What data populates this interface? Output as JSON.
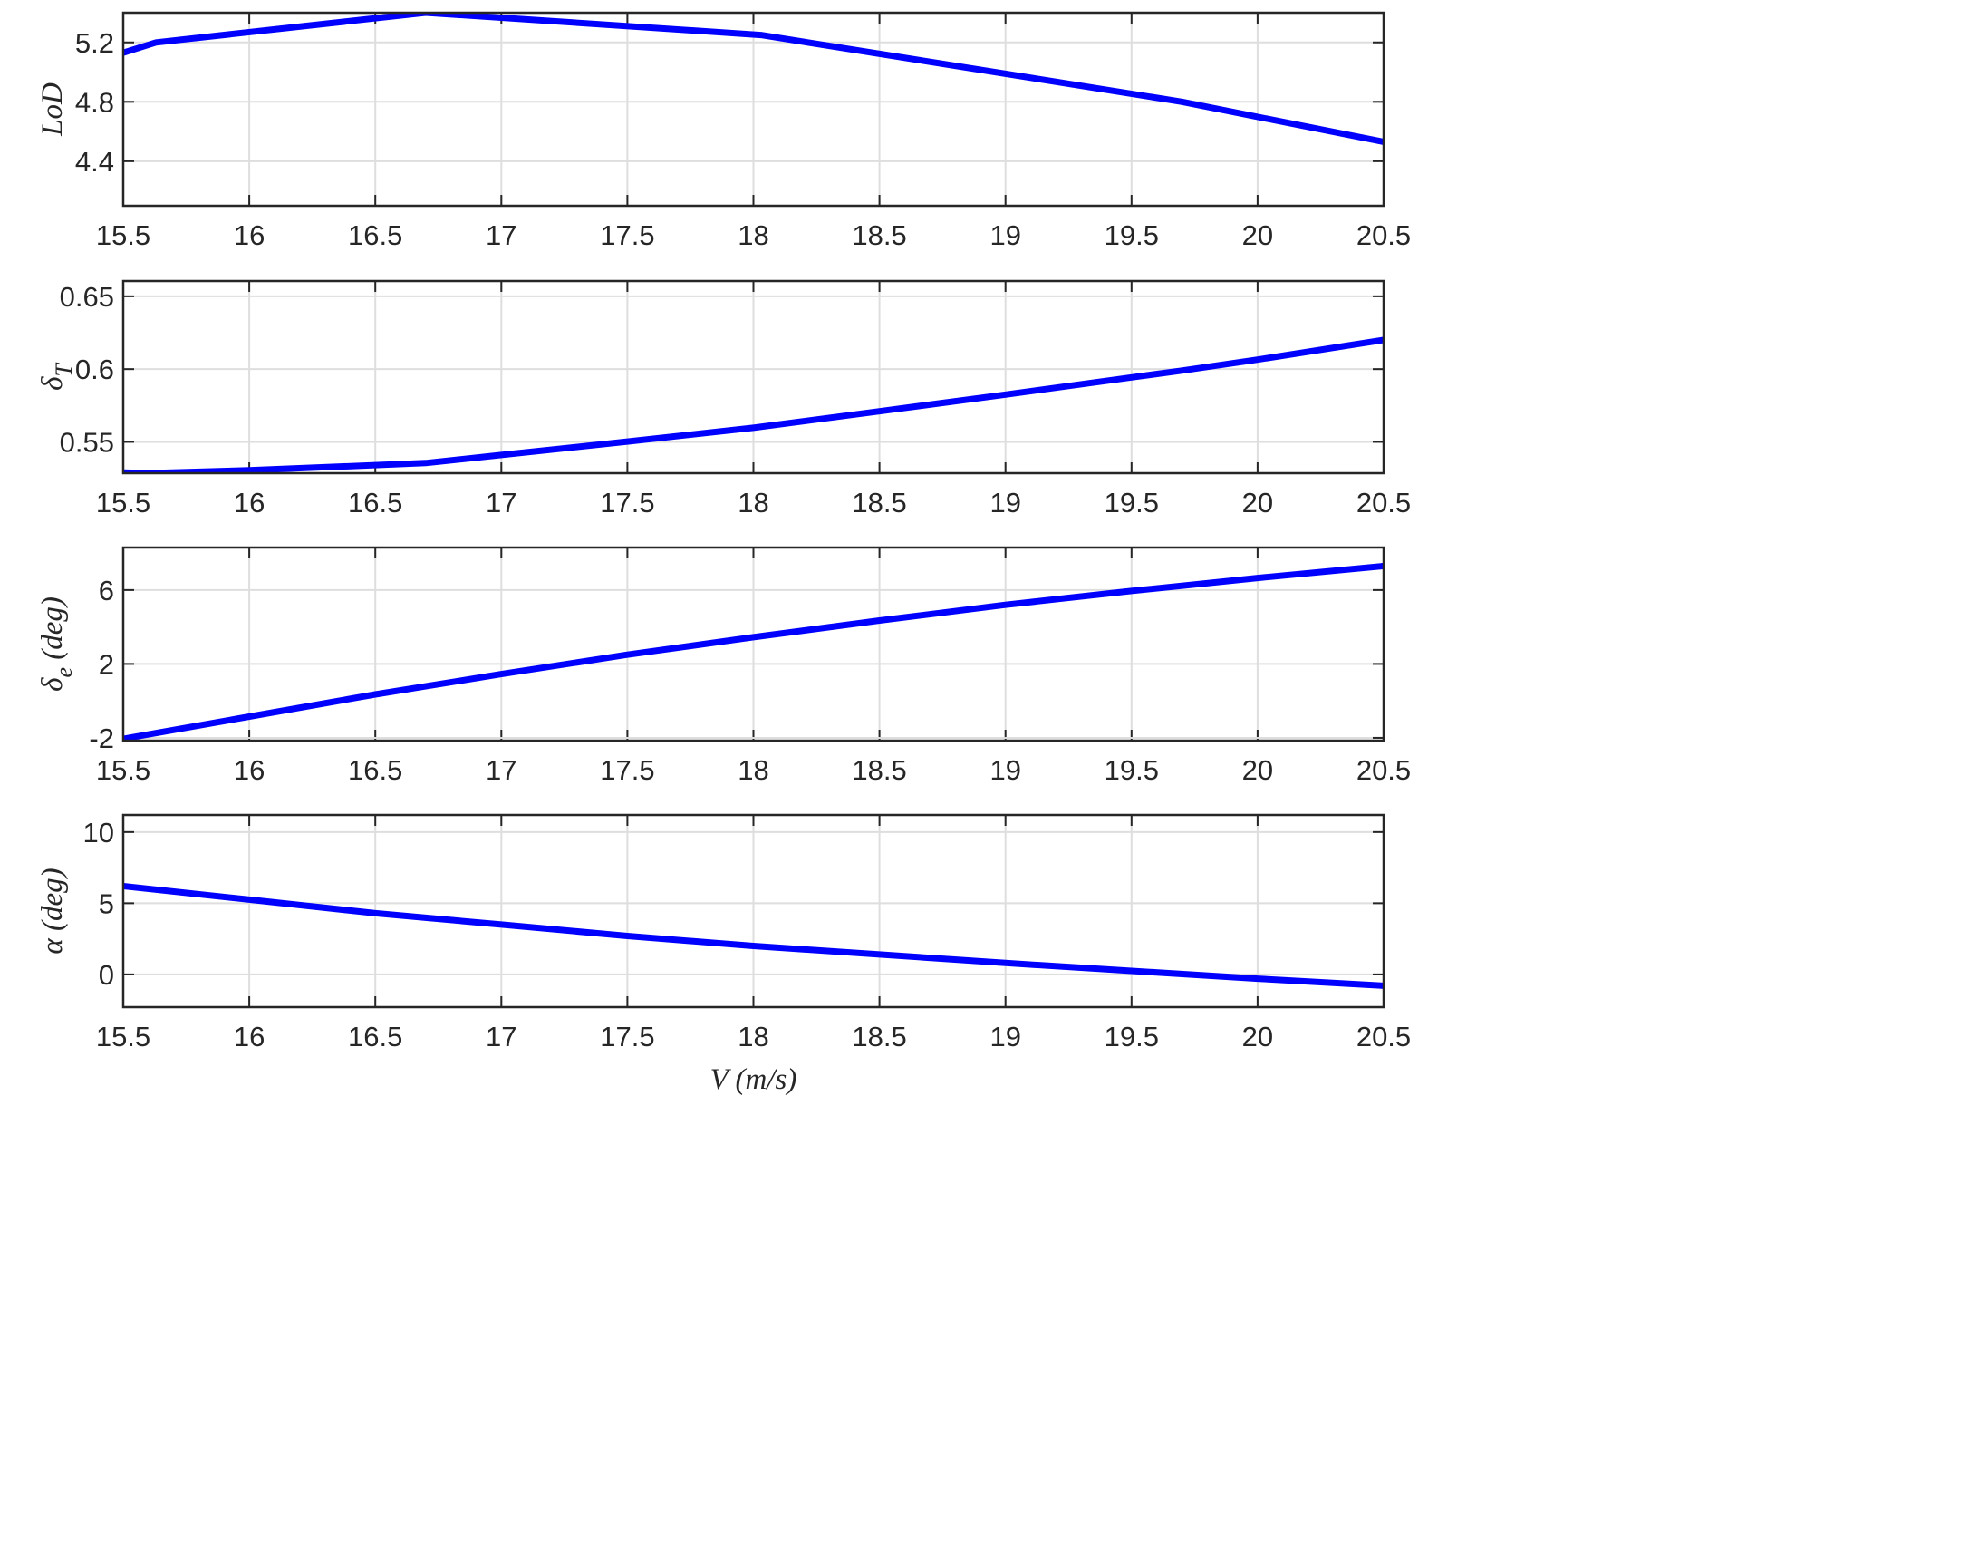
{
  "chart_data": [
    {
      "type": "line",
      "ylabel": "LoD",
      "xlim": [
        15.5,
        20.5
      ],
      "ylim": [
        4.1,
        5.4
      ],
      "xticks": [
        15.5,
        16,
        16.5,
        17,
        17.5,
        18,
        18.5,
        19,
        19.5,
        20,
        20.5
      ],
      "xtick_labels": [
        "15.5",
        "16",
        "16.5",
        "17",
        "17.5",
        "18",
        "18.5",
        "19",
        "19.5",
        "20",
        "20.5"
      ],
      "yticks": [
        4.4,
        4.8,
        5.2
      ],
      "ytick_labels": [
        "4.4",
        "4.8",
        "5.2"
      ],
      "grid": true,
      "color": "#0000ff",
      "x": [
        15.5,
        15.63,
        16.7,
        18.03,
        19.7,
        20.5
      ],
      "y": [
        5.13,
        5.2,
        5.4,
        5.25,
        4.8,
        4.53
      ]
    },
    {
      "type": "line",
      "ylabel": "δ",
      "ylabel_sub": "T",
      "xlim": [
        15.5,
        20.5
      ],
      "ylim": [
        0.5285,
        0.6605
      ],
      "xticks": [
        15.5,
        16,
        16.5,
        17,
        17.5,
        18,
        18.5,
        19,
        19.5,
        20,
        20.5
      ],
      "xtick_labels": [
        "15.5",
        "16",
        "16.5",
        "17",
        "17.5",
        "18",
        "18.5",
        "19",
        "19.5",
        "20",
        "20.5"
      ],
      "yticks": [
        0.55,
        0.6,
        0.65
      ],
      "ytick_labels": [
        "0.55",
        "0.6",
        "0.65"
      ],
      "grid": true,
      "color": "#0000ff",
      "x": [
        15.5,
        15.6,
        16.0,
        16.7,
        17.0,
        17.5,
        18.0,
        18.5,
        19.0,
        19.5,
        19.7,
        20.0,
        20.5
      ],
      "y": [
        0.529,
        0.5285,
        0.5305,
        0.5355,
        0.541,
        0.5502,
        0.5597,
        0.571,
        0.5825,
        0.5943,
        0.599,
        0.6065,
        0.62
      ]
    },
    {
      "type": "line",
      "ylabel": "δ",
      "ylabel_sub": "e",
      "ylabel_suffix": " (deg)",
      "xlim": [
        15.5,
        20.5
      ],
      "ylim": [
        -2.15,
        8.3
      ],
      "xticks": [
        15.5,
        16,
        16.5,
        17,
        17.5,
        18,
        18.5,
        19,
        19.5,
        20,
        20.5
      ],
      "xtick_labels": [
        "15.5",
        "16",
        "16.5",
        "17",
        "17.5",
        "18",
        "18.5",
        "19",
        "19.5",
        "20",
        "20.5"
      ],
      "yticks": [
        -2,
        2,
        6
      ],
      "ytick_labels": [
        "-2",
        "2",
        "6"
      ],
      "grid": true,
      "color": "#0000ff",
      "x": [
        15.5,
        16.0,
        16.5,
        17.0,
        17.5,
        18.0,
        18.5,
        19.0,
        19.5,
        20.0,
        20.5
      ],
      "y": [
        -2.05,
        -0.85,
        0.35,
        1.45,
        2.5,
        3.45,
        4.35,
        5.2,
        5.95,
        6.65,
        7.3
      ]
    },
    {
      "type": "line",
      "ylabel": "α (deg)",
      "xlim": [
        15.5,
        20.5
      ],
      "ylim": [
        -2.3,
        11.2
      ],
      "xticks": [
        15.5,
        16,
        16.5,
        17,
        17.5,
        18,
        18.5,
        19,
        19.5,
        20,
        20.5
      ],
      "xtick_labels": [
        "15.5",
        "16",
        "16.5",
        "17",
        "17.5",
        "18",
        "18.5",
        "19",
        "19.5",
        "20",
        "20.5"
      ],
      "yticks": [
        0,
        5,
        10
      ],
      "ytick_labels": [
        "0",
        "5",
        "10"
      ],
      "xlabel": "V (m/s)",
      "grid": true,
      "color": "#0000ff",
      "x": [
        15.5,
        16.0,
        16.5,
        17.0,
        17.5,
        18.0,
        18.5,
        19.0,
        19.5,
        20.0,
        20.5
      ],
      "y": [
        6.2,
        5.25,
        4.3,
        3.5,
        2.7,
        2.0,
        1.4,
        0.8,
        0.25,
        -0.3,
        -0.8
      ]
    }
  ]
}
